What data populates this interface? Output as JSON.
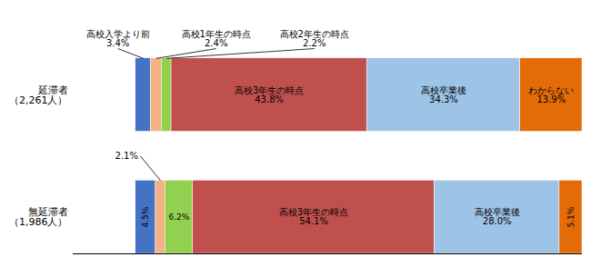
{
  "chart_data": {
    "type": "bar",
    "orientation": "horizontal",
    "stacked": true,
    "categories": [
      "延滞者\n（2,261人）",
      "無延滞者\n（1,986人）"
    ],
    "series": [
      {
        "name": "高校入学より前",
        "color": "#4472c4",
        "values": [
          3.4,
          4.5
        ],
        "value_labels": [
          "3.4%",
          "4.5%"
        ]
      },
      {
        "name": "高校1年生の時点",
        "color": "#f4b183",
        "values": [
          2.4,
          2.1
        ],
        "value_labels": [
          "2.4%",
          "2.1%"
        ]
      },
      {
        "name": "高校2年生の時点",
        "color": "#92d050",
        "values": [
          2.2,
          6.2
        ],
        "value_labels": [
          "2.2%",
          "6.2%"
        ]
      },
      {
        "name": "高校3年生の時点",
        "color": "#c0504d",
        "values": [
          43.8,
          54.1
        ],
        "value_labels": [
          "43.8%",
          "54.1%"
        ]
      },
      {
        "name": "高校卒業後",
        "color": "#9dc3e6",
        "values": [
          34.3,
          28.0
        ],
        "value_labels": [
          "34.3%",
          "28.0%"
        ]
      },
      {
        "name": "わからない",
        "color": "#e36c09",
        "values": [
          13.9,
          5.1
        ],
        "value_labels": [
          "13.9%",
          "5.1%"
        ]
      }
    ],
    "xlim": [
      -14,
      100
    ],
    "data_labels": true,
    "tick_labels": "y"
  }
}
